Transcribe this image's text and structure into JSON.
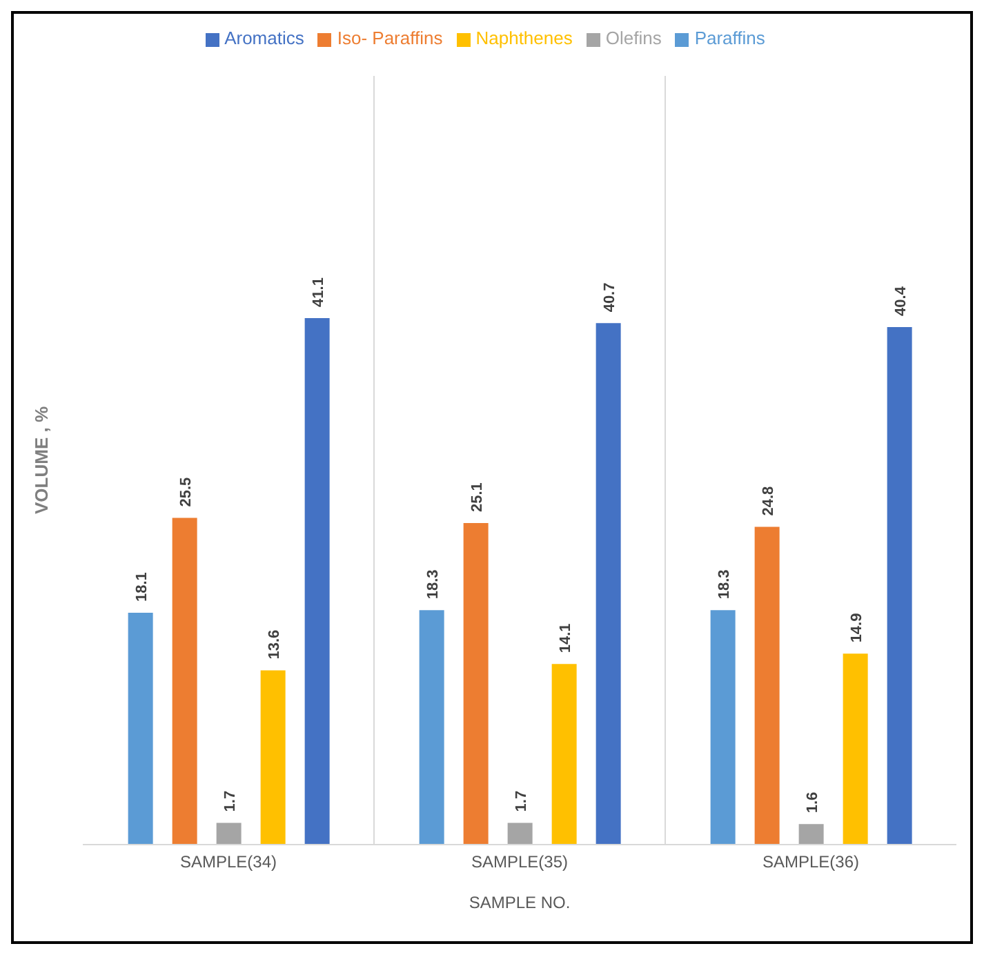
{
  "chart_data": {
    "type": "bar",
    "xlabel": "SAMPLE NO.",
    "ylabel": "VOLUME , %",
    "categories": [
      "SAMPLE(34)",
      "SAMPLE(35)",
      "SAMPLE(36)"
    ],
    "series": [
      {
        "name": "Paraffins",
        "color": "#5b9bd5",
        "values": [
          18.1,
          18.3,
          18.3
        ]
      },
      {
        "name": "Iso- Paraffins",
        "color": "#ed7d31",
        "values": [
          25.5,
          25.1,
          24.8
        ]
      },
      {
        "name": "Olefins",
        "color": "#a5a5a5",
        "values": [
          1.7,
          1.7,
          1.6
        ]
      },
      {
        "name": "Naphthenes",
        "color": "#ffc000",
        "values": [
          13.6,
          14.1,
          14.9
        ]
      },
      {
        "name": "Aromatics",
        "color": "#4472c4",
        "values": [
          41.1,
          40.7,
          40.4
        ]
      }
    ],
    "data_labels": true,
    "legend": "top",
    "grid": "x",
    "tick_labels": "x"
  }
}
